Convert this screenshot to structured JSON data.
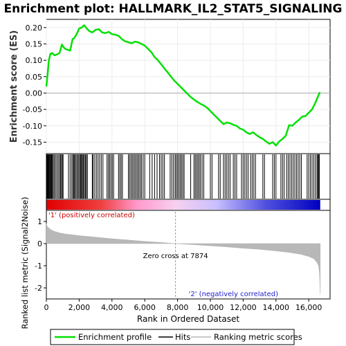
{
  "chart_data": {
    "type": "line",
    "title": "Enrichment plot: HALLMARK_IL2_STAT5_SIGNALING",
    "ylabel": "Enrichment score (ES)",
    "ylabel2": "Ranked list metric (Signal2Noise)",
    "xlabel": "Rank in Ordered Dataset",
    "xlim": [
      0,
      17300
    ],
    "ylim": [
      -0.185,
      0.225
    ],
    "ylim2": [
      -2.5,
      1.5
    ],
    "x_ticks": [
      0,
      2000,
      4000,
      6000,
      8000,
      10000,
      12000,
      14000,
      16000
    ],
    "x_tick_labels": [
      "0",
      "2,000",
      "4,000",
      "6,000",
      "8,000",
      "10,000",
      "12,000",
      "14,000",
      "16,000"
    ],
    "y_ticks": [
      -0.15,
      -0.1,
      -0.05,
      0.0,
      0.05,
      0.1,
      0.15,
      0.2
    ],
    "y_tick_labels": [
      "-0.15",
      "-0.10",
      "-0.05",
      "0.00",
      "0.05",
      "0.10",
      "0.15",
      "0.20"
    ],
    "y2_ticks": [
      -2,
      -1,
      0,
      1
    ],
    "y2_tick_labels": [
      "-2",
      "-1",
      "0",
      "1"
    ],
    "n_genes": 16700,
    "zero_cross": 7874,
    "zero_cross_label": "Zero cross at 7874",
    "pos_label": "'1' (positively correlated)",
    "neg_label": "'2' (negatively correlated)",
    "colors": {
      "es_line": "#00e000",
      "hits": "#000000",
      "metric_fill": "#b8b8b8",
      "pos_label": "#cc0000",
      "neg_label": "#2020cc",
      "zero_line": "#a8a8a8"
    },
    "es_series": {
      "name": "Enrichment profile",
      "x": [
        0,
        80,
        150,
        250,
        350,
        500,
        650,
        800,
        950,
        1050,
        1150,
        1300,
        1450,
        1600,
        1700,
        1850,
        2000,
        2150,
        2300,
        2450,
        2600,
        2800,
        3000,
        3200,
        3400,
        3600,
        3800,
        4000,
        4200,
        4400,
        4600,
        4800,
        5000,
        5200,
        5400,
        5600,
        5800,
        6000,
        6200,
        6400,
        6600,
        6800,
        7000,
        7200,
        7400,
        7600,
        7800,
        8000,
        8200,
        8400,
        8600,
        8800,
        9000,
        9200,
        9400,
        9600,
        9800,
        10000,
        10200,
        10400,
        10600,
        10800,
        11000,
        11200,
        11400,
        11600,
        11800,
        12000,
        12200,
        12400,
        12600,
        12800,
        13000,
        13200,
        13400,
        13600,
        13800,
        14000,
        14200,
        14400,
        14600,
        14800,
        15000,
        15200,
        15400,
        15600,
        15800,
        16000,
        16200,
        16400,
        16550,
        16650,
        16700
      ],
      "y": [
        0.02,
        0.06,
        0.1,
        0.12,
        0.122,
        0.115,
        0.118,
        0.122,
        0.148,
        0.14,
        0.135,
        0.132,
        0.13,
        0.165,
        0.168,
        0.18,
        0.197,
        0.2,
        0.207,
        0.198,
        0.19,
        0.185,
        0.193,
        0.195,
        0.185,
        0.183,
        0.187,
        0.18,
        0.178,
        0.175,
        0.165,
        0.158,
        0.155,
        0.152,
        0.157,
        0.155,
        0.15,
        0.145,
        0.135,
        0.125,
        0.11,
        0.1,
        0.088,
        0.075,
        0.063,
        0.05,
        0.038,
        0.028,
        0.018,
        0.008,
        -0.002,
        -0.012,
        -0.02,
        -0.027,
        -0.033,
        -0.038,
        -0.045,
        -0.055,
        -0.065,
        -0.075,
        -0.085,
        -0.095,
        -0.09,
        -0.092,
        -0.097,
        -0.1,
        -0.108,
        -0.112,
        -0.12,
        -0.125,
        -0.12,
        -0.128,
        -0.135,
        -0.14,
        -0.148,
        -0.155,
        -0.15,
        -0.16,
        -0.148,
        -0.14,
        -0.13,
        -0.098,
        -0.1,
        -0.09,
        -0.082,
        -0.072,
        -0.07,
        -0.06,
        -0.05,
        -0.03,
        -0.012,
        0.0,
        0.002
      ]
    },
    "hits": [
      30,
      60,
      90,
      130,
      160,
      200,
      240,
      280,
      320,
      360,
      420,
      480,
      560,
      640,
      720,
      800,
      860,
      920,
      980,
      1020,
      1350,
      1450,
      1550,
      1620,
      1680,
      1720,
      1780,
      1850,
      1920,
      1980,
      2050,
      2100,
      2150,
      2200,
      2260,
      2320,
      2380,
      2440,
      2500,
      2800,
      2850,
      2950,
      3050,
      3150,
      3250,
      3350,
      3450,
      3700,
      3780,
      3860,
      3940,
      4020,
      4100,
      4400,
      4480,
      4560,
      4640,
      5000,
      5080,
      5160,
      5240,
      5320,
      5400,
      5480,
      5560,
      5640,
      5720,
      5800,
      5900,
      6000,
      6300,
      6450,
      6600,
      6750,
      6900,
      7000,
      7100,
      7200,
      7550,
      7650,
      7750,
      7850,
      7920,
      8000,
      8080,
      8160,
      8240,
      8320,
      8400,
      8800,
      9000,
      9080,
      9160,
      9240,
      9320,
      9400,
      9500,
      9600,
      10000,
      10100,
      10500,
      10600,
      10800,
      10900,
      11000,
      11100,
      11200,
      11400,
      11500,
      11600,
      11900,
      12000,
      12100,
      12200,
      12300,
      12450,
      12550,
      12650,
      12750,
      13200,
      13300,
      13800,
      13900,
      14000,
      14300,
      14400,
      14500,
      14650,
      14750,
      14850,
      14950,
      15050,
      15150,
      15250,
      15350,
      15450,
      15550,
      15900,
      16000,
      16100,
      16200,
      16300,
      16400,
      16500,
      16550,
      16600,
      16650
    ],
    "metric_series": {
      "name": "Ranking metric scores",
      "x": [
        0,
        50,
        150,
        300,
        500,
        800,
        1200,
        2000,
        3000,
        4000,
        5000,
        6000,
        7000,
        7874,
        9000,
        10000,
        11000,
        12000,
        13000,
        14000,
        14800,
        15500,
        16000,
        16300,
        16500,
        16600,
        16650,
        16680,
        16700
      ],
      "y": [
        0.9,
        0.78,
        0.7,
        0.62,
        0.55,
        0.48,
        0.43,
        0.36,
        0.29,
        0.22,
        0.16,
        0.1,
        0.05,
        0.0,
        -0.05,
        -0.1,
        -0.15,
        -0.21,
        -0.26,
        -0.33,
        -0.4,
        -0.48,
        -0.58,
        -0.68,
        -0.85,
        -1.0,
        -1.3,
        -1.8,
        -2.3
      ]
    }
  },
  "legend": {
    "items": [
      {
        "label": "Enrichment profile",
        "color": "#00e000"
      },
      {
        "label": "Hits",
        "color": "#000000"
      },
      {
        "label": "Ranking metric scores",
        "color": "#b8b8b8"
      }
    ]
  }
}
